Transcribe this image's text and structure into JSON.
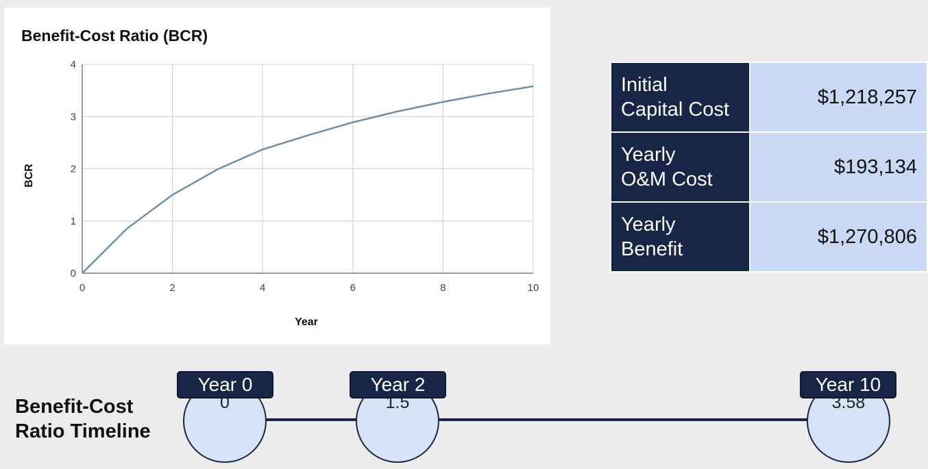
{
  "chart_data": {
    "type": "line",
    "title": "Benefit-Cost Ratio (BCR)",
    "xlabel": "Year",
    "ylabel": "BCR",
    "xlim": [
      0,
      10
    ],
    "ylim": [
      0,
      4
    ],
    "x_ticks": [
      "0",
      "2",
      "4",
      "6",
      "8",
      "10"
    ],
    "y_ticks": [
      "0",
      "1",
      "2",
      "3",
      "4"
    ],
    "grid": true,
    "series": [
      {
        "x": [
          0,
          1,
          2,
          3,
          4,
          5,
          6,
          7,
          8,
          9,
          10
        ],
        "values": [
          0,
          0.86,
          1.5,
          1.99,
          2.37,
          2.64,
          2.89,
          3.1,
          3.28,
          3.44,
          3.58
        ],
        "color": "#6b8fa8"
      }
    ]
  },
  "summary": [
    {
      "label": "Initial\nCapital Cost",
      "value": "$1,218,257"
    },
    {
      "label": "Yearly\nO&M Cost",
      "value": "$193,134"
    },
    {
      "label": "Yearly\nBenefit",
      "value": "$1,270,806"
    }
  ],
  "timeline": {
    "title": "Benefit-Cost\nRatio Timeline",
    "milestones": [
      {
        "year_label": "Year 0",
        "value": "0"
      },
      {
        "year_label": "Year 2",
        "value": "1.5"
      },
      {
        "year_label": "Year 10",
        "value": "3.58"
      }
    ]
  },
  "colors": {
    "navy": "#172547",
    "light_blue": "#c9d9f4",
    "circle_fill": "#d5e3f6",
    "line": "#6b8fa8"
  }
}
